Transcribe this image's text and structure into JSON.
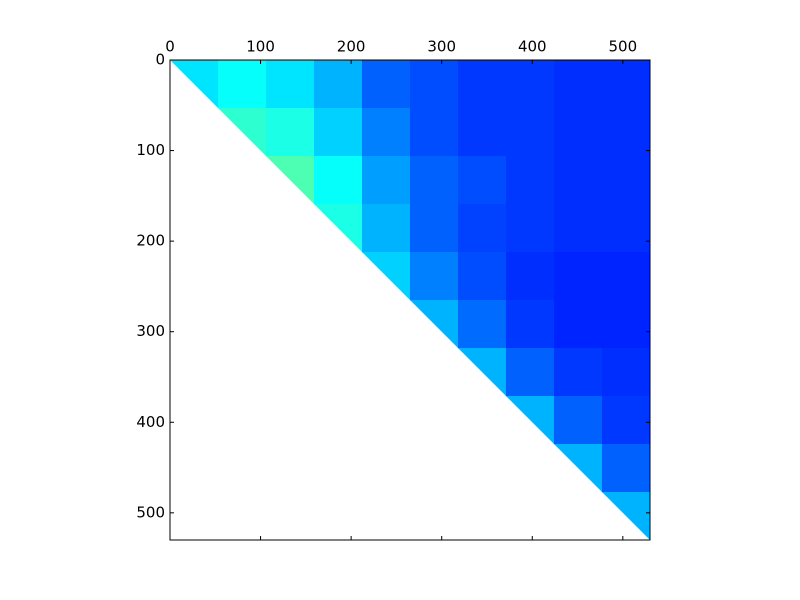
{
  "chart_data": {
    "type": "heatmap",
    "colormap": "jet",
    "clim": [
      0,
      1
    ],
    "bins": [
      0,
      53,
      106,
      159,
      212,
      265,
      318,
      371,
      424,
      477,
      530
    ],
    "z": [
      [
        0.35,
        0.38,
        0.35,
        0.3,
        0.22,
        0.2,
        0.18,
        0.18,
        0.17,
        0.17
      ],
      [
        null,
        0.42,
        0.4,
        0.33,
        0.25,
        0.2,
        0.18,
        0.18,
        0.17,
        0.17
      ],
      [
        null,
        null,
        0.45,
        0.38,
        0.28,
        0.22,
        0.2,
        0.18,
        0.17,
        0.17
      ],
      [
        null,
        null,
        null,
        0.4,
        0.3,
        0.22,
        0.19,
        0.18,
        0.17,
        0.17
      ],
      [
        null,
        null,
        null,
        null,
        0.33,
        0.25,
        0.2,
        0.17,
        0.16,
        0.16
      ],
      [
        null,
        null,
        null,
        null,
        null,
        0.3,
        0.23,
        0.18,
        0.16,
        0.16
      ],
      [
        null,
        null,
        null,
        null,
        null,
        null,
        0.3,
        0.22,
        0.18,
        0.17
      ],
      [
        null,
        null,
        null,
        null,
        null,
        null,
        null,
        0.3,
        0.22,
        0.18
      ],
      [
        null,
        null,
        null,
        null,
        null,
        null,
        null,
        null,
        0.3,
        0.22
      ],
      [
        null,
        null,
        null,
        null,
        null,
        null,
        null,
        null,
        null,
        0.3
      ]
    ],
    "xlim": [
      0,
      530
    ],
    "ylim": [
      0,
      530
    ],
    "xticks": [
      0,
      100,
      200,
      300,
      400,
      500
    ],
    "yticks": [
      0,
      100,
      200,
      300,
      400,
      500
    ]
  }
}
